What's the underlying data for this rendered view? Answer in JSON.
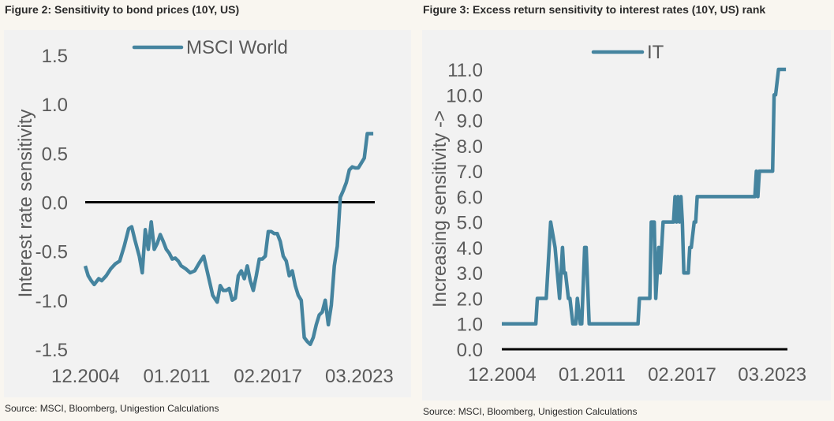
{
  "chart_data": [
    {
      "type": "line",
      "title": "Figure 2: Sensitivity to bond prices (10Y, US)",
      "source": "Source: MSCI, Bloomberg, Unigestion Calculations",
      "ylabel": "Interest rate sensitivity",
      "xlabel": "",
      "ylim": [
        -1.5,
        1.5
      ],
      "yticks": [
        "1.5",
        "1.0",
        "0.5",
        "0.0",
        "-0.5",
        "-1.0",
        "-1.5"
      ],
      "ytick_values": [
        1.5,
        1.0,
        0.5,
        0.0,
        -0.5,
        -1.0,
        -1.5
      ],
      "xticks": [
        "12.2004",
        "01.2011",
        "02.2017",
        "03.2023"
      ],
      "xtick_values": [
        2004.92,
        2011.0,
        2017.08,
        2023.17
      ],
      "xlim": [
        2004.9,
        2024.2
      ],
      "legend": "top-center",
      "grid": false,
      "series": [
        {
          "name": "MSCI World",
          "color": "#45849f",
          "x": [
            2004.9,
            2005.1,
            2005.3,
            2005.5,
            2005.8,
            2006.0,
            2006.3,
            2006.6,
            2006.9,
            2007.2,
            2007.5,
            2007.8,
            2008.0,
            2008.2,
            2008.5,
            2008.7,
            2008.9,
            2009.1,
            2009.3,
            2009.5,
            2009.7,
            2009.9,
            2010.1,
            2010.3,
            2010.5,
            2010.7,
            2010.9,
            2011.1,
            2011.3,
            2011.6,
            2011.9,
            2012.2,
            2012.5,
            2012.8,
            2013.1,
            2013.4,
            2013.7,
            2013.9,
            2014.1,
            2014.3,
            2014.5,
            2014.7,
            2014.9,
            2015.1,
            2015.3,
            2015.5,
            2015.7,
            2015.9,
            2016.1,
            2016.3,
            2016.5,
            2016.7,
            2016.9,
            2017.1,
            2017.3,
            2017.5,
            2017.7,
            2017.9,
            2018.1,
            2018.3,
            2018.5,
            2018.7,
            2018.9,
            2019.1,
            2019.3,
            2019.5,
            2019.7,
            2019.9,
            2020.1,
            2020.3,
            2020.5,
            2020.7,
            2020.9,
            2021.1,
            2021.3,
            2021.5,
            2021.7,
            2021.9,
            2022.1,
            2022.3,
            2022.5,
            2022.7,
            2022.9,
            2023.1,
            2023.3,
            2023.5,
            2023.7,
            2023.9,
            2024.1
          ],
          "y": [
            -0.65,
            -0.75,
            -0.8,
            -0.84,
            -0.78,
            -0.8,
            -0.75,
            -0.68,
            -0.63,
            -0.6,
            -0.45,
            -0.27,
            -0.25,
            -0.38,
            -0.55,
            -0.72,
            -0.28,
            -0.48,
            -0.2,
            -0.48,
            -0.42,
            -0.33,
            -0.4,
            -0.48,
            -0.52,
            -0.58,
            -0.57,
            -0.6,
            -0.65,
            -0.68,
            -0.72,
            -0.7,
            -0.62,
            -0.55,
            -0.75,
            -0.95,
            -1.02,
            -0.85,
            -0.9,
            -0.9,
            -0.88,
            -1.0,
            -0.98,
            -0.75,
            -0.7,
            -0.78,
            -0.65,
            -0.8,
            -0.9,
            -0.75,
            -0.58,
            -0.58,
            -0.55,
            -0.3,
            -0.3,
            -0.32,
            -0.32,
            -0.4,
            -0.55,
            -0.6,
            -0.75,
            -0.7,
            -0.85,
            -0.95,
            -1.0,
            -1.38,
            -1.42,
            -1.45,
            -1.38,
            -1.25,
            -1.15,
            -1.12,
            -1.0,
            -1.25,
            -1.05,
            -0.65,
            -0.45,
            0.05,
            0.12,
            0.2,
            0.33,
            0.36,
            0.35,
            0.35,
            0.4,
            0.45,
            0.7,
            0.7,
            0.7
          ]
        }
      ]
    },
    {
      "type": "line",
      "title": "Figure 3: Excess return sensitivity to interest rates (10Y, US) rank",
      "source": "Source: MSCI, Bloomberg, Unigestion Calculations",
      "ylabel": "Increasing sensitivity ->",
      "xlabel": "",
      "ylim": [
        0,
        11
      ],
      "yticks": [
        "11.0",
        "10.0",
        "9.0",
        "8.0",
        "7.0",
        "6.0",
        "5.0",
        "4.0",
        "3.0",
        "2.0",
        "1.0",
        "0.0"
      ],
      "ytick_values": [
        11,
        10,
        9,
        8,
        7,
        6,
        5,
        4,
        3,
        2,
        1,
        0
      ],
      "xticks": [
        "12.2004",
        "01.2011",
        "02.2017",
        "03.2023"
      ],
      "xtick_values": [
        2004.92,
        2011.0,
        2017.08,
        2023.17
      ],
      "xlim": [
        2004.9,
        2024.2
      ],
      "legend": "top-center",
      "grid": false,
      "series": [
        {
          "name": "IT",
          "color": "#45849f",
          "x": [
            2004.9,
            2007.2,
            2007.3,
            2007.9,
            2008.2,
            2008.5,
            2008.8,
            2009.0,
            2009.1,
            2009.2,
            2009.4,
            2009.5,
            2009.7,
            2009.9,
            2010.0,
            2010.2,
            2010.3,
            2010.5,
            2010.6,
            2010.8,
            2011.0,
            2011.1,
            2011.3,
            2011.5,
            2014.1,
            2014.2,
            2014.9,
            2015.0,
            2015.2,
            2015.3,
            2015.5,
            2015.6,
            2015.8,
            2015.9,
            2016.1,
            2016.5,
            2016.6,
            2016.7,
            2016.8,
            2016.9,
            2017.0,
            2017.1,
            2017.2,
            2017.3,
            2017.5,
            2017.6,
            2017.7,
            2017.9,
            2018.0,
            2018.1,
            2018.2,
            2018.3,
            2018.5,
            2018.6,
            2022.0,
            2022.1,
            2022.2,
            2022.3,
            2022.4,
            2023.2,
            2023.3,
            2023.4,
            2023.6,
            2024.1
          ],
          "y": [
            1,
            1,
            2,
            2,
            5,
            4,
            2,
            4,
            3,
            3,
            2,
            2,
            1,
            1,
            2,
            1,
            1,
            4,
            4,
            1,
            1,
            1,
            1,
            1,
            1,
            2,
            2,
            5,
            5,
            2,
            4,
            3,
            5,
            5,
            5,
            5,
            6,
            5,
            6,
            5,
            6,
            5,
            3,
            3,
            3,
            4,
            4,
            5,
            5,
            6,
            6,
            6,
            6,
            6,
            6,
            7,
            6,
            7,
            7,
            7,
            10,
            10,
            11,
            11
          ]
        }
      ]
    }
  ],
  "zero_line_color": "#000000"
}
